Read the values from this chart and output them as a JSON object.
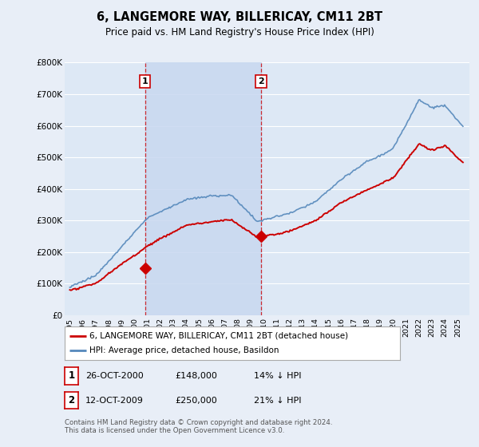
{
  "title": "6, LANGEMORE WAY, BILLERICAY, CM11 2BT",
  "subtitle": "Price paid vs. HM Land Registry's House Price Index (HPI)",
  "legend_line1": "6, LANGEMORE WAY, BILLERICAY, CM11 2BT (detached house)",
  "legend_line2": "HPI: Average price, detached house, Basildon",
  "annotation1_label": "1",
  "annotation1_date": "26-OCT-2000",
  "annotation1_price": "£148,000",
  "annotation1_hpi": "14% ↓ HPI",
  "annotation2_label": "2",
  "annotation2_date": "12-OCT-2009",
  "annotation2_price": "£250,000",
  "annotation2_hpi": "21% ↓ HPI",
  "footnote": "Contains HM Land Registry data © Crown copyright and database right 2024.\nThis data is licensed under the Open Government Licence v3.0.",
  "ylim": [
    0,
    800000
  ],
  "yticks": [
    0,
    100000,
    200000,
    300000,
    400000,
    500000,
    600000,
    700000,
    800000
  ],
  "ytick_labels": [
    "£0",
    "£100K",
    "£200K",
    "£300K",
    "£400K",
    "£500K",
    "£600K",
    "£700K",
    "£800K"
  ],
  "bg_color": "#e8eef7",
  "plot_bg_color": "#dde8f5",
  "shade_color": "#c8d8f0",
  "grid_color": "#ffffff",
  "red_line_color": "#cc0000",
  "blue_line_color": "#5588bb",
  "vline_color": "#cc0000",
  "marker1_year": 2000.82,
  "marker1_price": 148000,
  "marker2_year": 2009.79,
  "marker2_price": 250000,
  "vline1_x": 2000.82,
  "vline2_x": 2009.79,
  "xlim_left": 1994.6,
  "xlim_right": 2025.9
}
